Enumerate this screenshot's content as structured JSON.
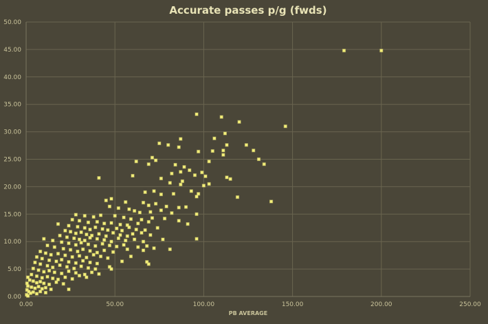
{
  "colors": {
    "background": "#4a4638",
    "plot_background": "#4a4638",
    "gridline": "#6a6550",
    "text": "#c9c39a",
    "title": "#e8e3b6",
    "marker": "#f2ee7a",
    "marker_halo": "#e6e070"
  },
  "chart_data": {
    "type": "scatter",
    "title": "Accurate passes p/g (fwds)",
    "xlabel": "PB AVERAGE",
    "ylabel": "",
    "xlim": [
      0,
      250
    ],
    "ylim": [
      0,
      50
    ],
    "xticks": [
      "0.00",
      "50.00",
      "100.00",
      "150.00",
      "200.00",
      "250.00"
    ],
    "yticks": [
      "0.00",
      "5.00",
      "10.00",
      "15.00",
      "20.00",
      "25.00",
      "30.00",
      "35.00",
      "40.00",
      "45.00",
      "50.00"
    ],
    "grid": true,
    "legend": "none",
    "points": [
      [
        179,
        44.8
      ],
      [
        200,
        44.8
      ],
      [
        96,
        33.2
      ],
      [
        110,
        32.7
      ],
      [
        120,
        31.8
      ],
      [
        146,
        31.0
      ],
      [
        112,
        29.7
      ],
      [
        87,
        28.7
      ],
      [
        106,
        28.8
      ],
      [
        75,
        27.9
      ],
      [
        80,
        27.6
      ],
      [
        86,
        27.2
      ],
      [
        113,
        27.6
      ],
      [
        124,
        27.6
      ],
      [
        111,
        26.6
      ],
      [
        97,
        26.4
      ],
      [
        105,
        26.5
      ],
      [
        128,
        26.6
      ],
      [
        111,
        25.8
      ],
      [
        71,
        25.3
      ],
      [
        73,
        24.8
      ],
      [
        103,
        24.6
      ],
      [
        62,
        24.6
      ],
      [
        69,
        24.1
      ],
      [
        84,
        24.0
      ],
      [
        89,
        23.6
      ],
      [
        131,
        25.0
      ],
      [
        134,
        24.1
      ],
      [
        82,
        22.4
      ],
      [
        87,
        22.7
      ],
      [
        92,
        23.0
      ],
      [
        95,
        22.1
      ],
      [
        99,
        22.6
      ],
      [
        101,
        21.9
      ],
      [
        113,
        21.7
      ],
      [
        115,
        21.4
      ],
      [
        41,
        21.6
      ],
      [
        60,
        22.0
      ],
      [
        76,
        21.5
      ],
      [
        88,
        21.0
      ],
      [
        100,
        20.2
      ],
      [
        87,
        20.4
      ],
      [
        81,
        20.7
      ],
      [
        103,
        20.5
      ],
      [
        67,
        19.0
      ],
      [
        72,
        19.2
      ],
      [
        76,
        18.6
      ],
      [
        83,
        18.7
      ],
      [
        93,
        19.2
      ],
      [
        96,
        18.2
      ],
      [
        97,
        18.7
      ],
      [
        119,
        18.1
      ],
      [
        138,
        17.3
      ],
      [
        45,
        17.5
      ],
      [
        48,
        17.8
      ],
      [
        56,
        17.2
      ],
      [
        66,
        17.1
      ],
      [
        69,
        16.6
      ],
      [
        73,
        16.9
      ],
      [
        79,
        16.4
      ],
      [
        86,
        16.2
      ],
      [
        90,
        16.3
      ],
      [
        47,
        16.4
      ],
      [
        52,
        16.1
      ],
      [
        58,
        15.9
      ],
      [
        61,
        15.6
      ],
      [
        64,
        15.3
      ],
      [
        70,
        15.4
      ],
      [
        76,
        15.7
      ],
      [
        82,
        15.2
      ],
      [
        96,
        15.0
      ],
      [
        28,
        14.9
      ],
      [
        33,
        14.7
      ],
      [
        38,
        14.5
      ],
      [
        42,
        14.8
      ],
      [
        50,
        14.7
      ],
      [
        55,
        14.4
      ],
      [
        59,
        14.1
      ],
      [
        65,
        14.0
      ],
      [
        71,
        14.3
      ],
      [
        78,
        14.2
      ],
      [
        26,
        14.0
      ],
      [
        30,
        13.8
      ],
      [
        35,
        13.5
      ],
      [
        40,
        13.6
      ],
      [
        44,
        13.3
      ],
      [
        48,
        13.4
      ],
      [
        53,
        13.1
      ],
      [
        57,
        13.0
      ],
      [
        63,
        13.3
      ],
      [
        69,
        13.6
      ],
      [
        86,
        13.8
      ],
      [
        91,
        13.2
      ],
      [
        18,
        13.2
      ],
      [
        24,
        12.9
      ],
      [
        29,
        12.7
      ],
      [
        33,
        12.5
      ],
      [
        36,
        12.2
      ],
      [
        39,
        12.6
      ],
      [
        43,
        12.3
      ],
      [
        46,
        12.1
      ],
      [
        51,
        12.4
      ],
      [
        54,
        12.0
      ],
      [
        58,
        12.6
      ],
      [
        62,
        12.2
      ],
      [
        67,
        12.1
      ],
      [
        74,
        12.5
      ],
      [
        22,
        12.0
      ],
      [
        25,
        11.8
      ],
      [
        28,
        11.5
      ],
      [
        31,
        11.7
      ],
      [
        34,
        11.3
      ],
      [
        37,
        11.1
      ],
      [
        41,
        11.4
      ],
      [
        45,
        11.0
      ],
      [
        49,
        11.6
      ],
      [
        53,
        11.2
      ],
      [
        57,
        11.0
      ],
      [
        60,
        11.4
      ],
      [
        65,
        11.6
      ],
      [
        70,
        11.2
      ],
      [
        19,
        11.1
      ],
      [
        23,
        10.8
      ],
      [
        27,
        10.6
      ],
      [
        30,
        10.4
      ],
      [
        33,
        10.2
      ],
      [
        36,
        10.7
      ],
      [
        40,
        10.5
      ],
      [
        44,
        10.3
      ],
      [
        48,
        10.0
      ],
      [
        52,
        10.6
      ],
      [
        56,
        10.2
      ],
      [
        61,
        10.4
      ],
      [
        66,
        10.0
      ],
      [
        77,
        10.4
      ],
      [
        96,
        10.5
      ],
      [
        10,
        10.5
      ],
      [
        15,
        10.2
      ],
      [
        20,
        9.9
      ],
      [
        24,
        9.7
      ],
      [
        28,
        9.4
      ],
      [
        31,
        9.8
      ],
      [
        35,
        9.5
      ],
      [
        39,
        9.2
      ],
      [
        43,
        9.6
      ],
      [
        47,
        9.3
      ],
      [
        51,
        9.1
      ],
      [
        55,
        9.4
      ],
      [
        63,
        9.0
      ],
      [
        68,
        9.2
      ],
      [
        72,
        8.8
      ],
      [
        81,
        8.6
      ],
      [
        12,
        9.3
      ],
      [
        16,
        9.0
      ],
      [
        21,
        8.7
      ],
      [
        25,
        8.5
      ],
      [
        29,
        8.2
      ],
      [
        32,
        8.6
      ],
      [
        36,
        8.3
      ],
      [
        40,
        8.0
      ],
      [
        44,
        8.4
      ],
      [
        49,
        8.1
      ],
      [
        57,
        8.6
      ],
      [
        66,
        8.4
      ],
      [
        8,
        8.2
      ],
      [
        11,
        7.9
      ],
      [
        14,
        7.6
      ],
      [
        18,
        7.8
      ],
      [
        22,
        7.5
      ],
      [
        26,
        7.2
      ],
      [
        30,
        7.4
      ],
      [
        34,
        7.1
      ],
      [
        38,
        7.6
      ],
      [
        42,
        7.3
      ],
      [
        46,
        7.0
      ],
      [
        59,
        7.3
      ],
      [
        6,
        7.2
      ],
      [
        9,
        6.9
      ],
      [
        13,
        6.6
      ],
      [
        17,
        6.4
      ],
      [
        20,
        6.7
      ],
      [
        24,
        6.3
      ],
      [
        28,
        6.1
      ],
      [
        32,
        6.5
      ],
      [
        36,
        6.2
      ],
      [
        40,
        6.0
      ],
      [
        54,
        6.4
      ],
      [
        68,
        6.3
      ],
      [
        69,
        5.9
      ],
      [
        5,
        6.2
      ],
      [
        8,
        5.9
      ],
      [
        12,
        5.6
      ],
      [
        15,
        5.3
      ],
      [
        19,
        5.7
      ],
      [
        23,
        5.4
      ],
      [
        27,
        5.1
      ],
      [
        31,
        5.5
      ],
      [
        35,
        5.2
      ],
      [
        39,
        5.0
      ],
      [
        47,
        5.4
      ],
      [
        48,
        5.0
      ],
      [
        4,
        5.1
      ],
      [
        7,
        4.8
      ],
      [
        10,
        4.5
      ],
      [
        13,
        4.7
      ],
      [
        16,
        4.4
      ],
      [
        20,
        4.2
      ],
      [
        24,
        4.6
      ],
      [
        28,
        4.3
      ],
      [
        33,
        4.0
      ],
      [
        37,
        4.4
      ],
      [
        41,
        4.1
      ],
      [
        3,
        4.0
      ],
      [
        6,
        3.7
      ],
      [
        9,
        3.4
      ],
      [
        12,
        3.6
      ],
      [
        15,
        3.3
      ],
      [
        18,
        3.1
      ],
      [
        22,
        3.5
      ],
      [
        26,
        3.2
      ],
      [
        30,
        3.8
      ],
      [
        34,
        3.5
      ],
      [
        1,
        3.5
      ],
      [
        2,
        3.0
      ],
      [
        4,
        2.8
      ],
      [
        6,
        2.5
      ],
      [
        8,
        2.7
      ],
      [
        10,
        2.4
      ],
      [
        13,
        2.2
      ],
      [
        17,
        2.6
      ],
      [
        21,
        2.3
      ],
      [
        0.5,
        2.4
      ],
      [
        1,
        1.9
      ],
      [
        3,
        1.7
      ],
      [
        5,
        1.5
      ],
      [
        7,
        1.8
      ],
      [
        9,
        1.4
      ],
      [
        11,
        1.6
      ],
      [
        14,
        1.3
      ],
      [
        24,
        1.3
      ],
      [
        0.5,
        1.2
      ],
      [
        1.5,
        0.9
      ],
      [
        2.5,
        0.6
      ],
      [
        4,
        0.8
      ],
      [
        6,
        0.5
      ],
      [
        0.3,
        0.3
      ],
      [
        1,
        0.1
      ],
      [
        8,
        0.9
      ],
      [
        11,
        0.7
      ]
    ]
  }
}
